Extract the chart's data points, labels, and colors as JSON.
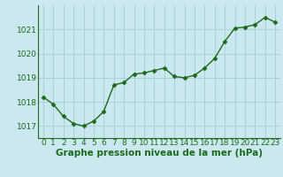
{
  "x": [
    0,
    1,
    2,
    3,
    4,
    5,
    6,
    7,
    8,
    9,
    10,
    11,
    12,
    13,
    14,
    15,
    16,
    17,
    18,
    19,
    20,
    21,
    22,
    23
  ],
  "y": [
    1018.2,
    1017.9,
    1017.4,
    1017.1,
    1017.0,
    1017.2,
    1017.6,
    1018.7,
    1018.8,
    1019.15,
    1019.2,
    1019.3,
    1019.4,
    1019.05,
    1019.0,
    1019.1,
    1019.4,
    1019.8,
    1020.5,
    1021.05,
    1021.1,
    1021.2,
    1021.5,
    1021.3
  ],
  "xlabel": "Graphe pression niveau de la mer (hPa)",
  "ylim": [
    1016.5,
    1022.0
  ],
  "xlim": [
    -0.5,
    23.5
  ],
  "yticks": [
    1017,
    1018,
    1019,
    1020,
    1021
  ],
  "xticks": [
    0,
    1,
    2,
    3,
    4,
    5,
    6,
    7,
    8,
    9,
    10,
    11,
    12,
    13,
    14,
    15,
    16,
    17,
    18,
    19,
    20,
    21,
    22,
    23
  ],
  "line_color": "#1a6b1a",
  "marker_color": "#1a6b1a",
  "bg_color": "#cbe8f0",
  "grid_color": "#aad0d8",
  "xlabel_fontsize": 7.5,
  "tick_fontsize": 6.5,
  "marker": "D",
  "marker_size": 2.5,
  "line_width": 1.0
}
